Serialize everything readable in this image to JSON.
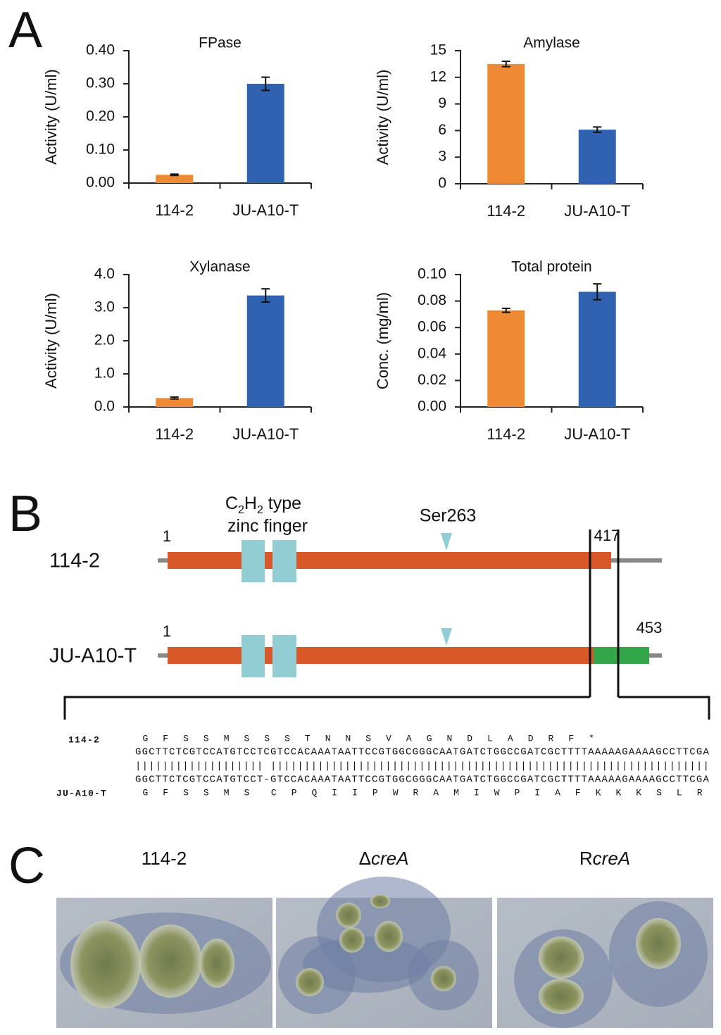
{
  "panels": [
    "A",
    "B",
    "C"
  ],
  "chart_data": [
    {
      "type": "bar",
      "title": "FPase",
      "ylabel": "Activity (U/ml)",
      "categories": [
        "114-2",
        "JU-A10-T"
      ],
      "values": [
        0.025,
        0.3
      ],
      "errors": [
        0.002,
        0.02
      ],
      "colors": [
        "#ee8a33",
        "#3162b0"
      ],
      "ylim": [
        0,
        0.4
      ],
      "yticks": [
        {
          "value": 0,
          "label": "0.00"
        },
        {
          "value": 0.1,
          "label": "0.10"
        },
        {
          "value": 0.2,
          "label": "0.20"
        },
        {
          "value": 0.3,
          "label": "0.30"
        },
        {
          "value": 0.4,
          "label": "0.40"
        }
      ]
    },
    {
      "type": "bar",
      "title": "Amylase",
      "ylabel": "Activity (U/ml)",
      "categories": [
        "114-2",
        "JU-A10-T"
      ],
      "values": [
        13.5,
        6.1
      ],
      "errors": [
        0.3,
        0.3
      ],
      "colors": [
        "#ee8a33",
        "#3162b0"
      ],
      "ylim": [
        0,
        15
      ],
      "yticks": [
        0,
        3,
        6,
        9,
        12,
        15
      ]
    },
    {
      "type": "bar",
      "title": "Xylanase",
      "ylabel": "Activity (U/ml)",
      "categories": [
        "114-2",
        "JU-A10-T"
      ],
      "values": [
        0.27,
        3.37
      ],
      "errors": [
        0.03,
        0.2
      ],
      "colors": [
        "#ee8a33",
        "#3162b0"
      ],
      "ylim": [
        0,
        4
      ],
      "yticks": [
        {
          "value": 0,
          "label": "0.0"
        },
        {
          "value": 1,
          "label": "1.0"
        },
        {
          "value": 2,
          "label": "2.0"
        },
        {
          "value": 3,
          "label": "3.0"
        },
        {
          "value": 4,
          "label": "4.0"
        }
      ]
    },
    {
      "type": "bar",
      "title": "Total protein",
      "ylabel": "Conc. (mg/ml)",
      "categories": [
        "114-2",
        "JU-A10-T"
      ],
      "values": [
        0.073,
        0.087
      ],
      "errors": [
        0.0015,
        0.006
      ],
      "colors": [
        "#ee8a33",
        "#3162b0"
      ],
      "ylim": [
        0,
        0.1
      ],
      "yticks": [
        {
          "value": 0,
          "label": "0.00"
        },
        {
          "value": 0.02,
          "label": "0.02"
        },
        {
          "value": 0.04,
          "label": "0.04"
        },
        {
          "value": 0.06,
          "label": "0.06"
        },
        {
          "value": 0.08,
          "label": "0.08"
        },
        {
          "value": 0.1,
          "label": "0.10"
        }
      ]
    }
  ],
  "diagram": {
    "domain_label": [
      [
        {
          "text": "C"
        },
        {
          "text": "2",
          "sub": true
        },
        {
          "text": "H"
        },
        {
          "text": "2",
          "sub": true
        },
        {
          "text": " type"
        }
      ],
      [
        {
          "text": "zinc finger"
        }
      ]
    ],
    "site_label": "Ser263",
    "tracks": [
      {
        "name": "114-2",
        "start": "1",
        "end": "417"
      },
      {
        "name": "JU-A10-T",
        "start": "1",
        "end": "453"
      }
    ],
    "colors": {
      "protein": "#d8582a",
      "extension": "#33a64a",
      "domain": "#93cdd4",
      "line": "#888888"
    }
  },
  "alignment": {
    "top_label": "114-2",
    "top_protein": [
      "G",
      "F",
      "S",
      "S",
      "M",
      "S",
      "S",
      "S",
      "T",
      "N",
      "N",
      "S",
      "V",
      "A",
      "G",
      "N",
      "D",
      "L",
      "A",
      "D",
      "R",
      "F",
      "*"
    ],
    "top_dna": {
      "before": "GGCTTCTCGTCCATGTCCT",
      "mutation": "C",
      "after": "GTCCACAAATAATTCCGTGGCGGGCAATGATCTGGCCGATCGCTTTTAAAAAGAAAAGCCTTCGA"
    },
    "match": "||||||||||||||||||| |||||||||||||||||||||||||||||||||||||||||||||||||||||||||||||||||",
    "bottom_dna": {
      "before": "GGCTTCTCGTCCATGTCCT",
      "mutation": "-",
      "after": "GTCCACAAATAATTCCGTGGCGGGCAATGATCTGGCCGATCGCTTTTAAAAAGAAAAGCCTTCGA"
    },
    "bottom_label": "JU-A10-T",
    "bottom_protein_conserved": [
      "G",
      "F",
      "S",
      "S",
      "M",
      "S"
    ],
    "bottom_protein_new": [
      "C",
      "P",
      "Q",
      "I",
      "I",
      "P",
      "W",
      "R",
      "A",
      "M",
      "I",
      "W",
      "P",
      "I",
      "A",
      "F",
      "K",
      "K",
      "K",
      "S",
      "L",
      "R"
    ],
    "colors": {
      "conserved": "#d8582a",
      "new": "#33a64a",
      "mutation": "#e02020"
    }
  },
  "photos": [
    {
      "title": [
        {
          "text": "114-2"
        }
      ]
    },
    {
      "title": [
        {
          "text": "Δ"
        },
        {
          "text": "creA",
          "italic": true
        }
      ]
    },
    {
      "title": [
        {
          "text": "R"
        },
        {
          "text": "creA",
          "italic": true
        }
      ]
    }
  ]
}
